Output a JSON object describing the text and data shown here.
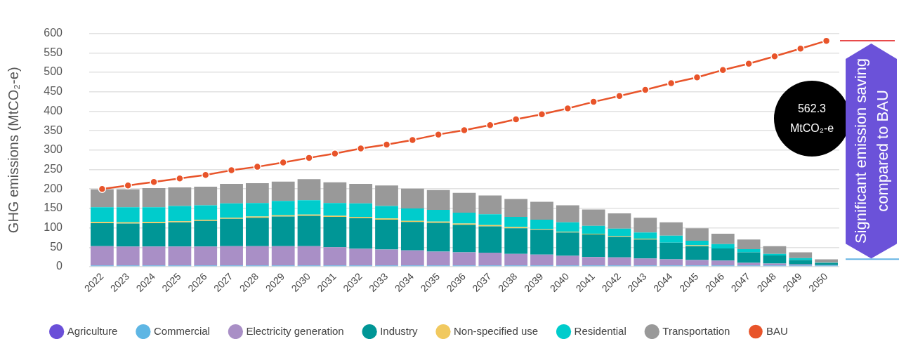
{
  "chart_data": {
    "type": "bar",
    "stacked": true,
    "ylabel": "GHG emissions (MtCO₂-e)",
    "categories": [
      "2022",
      "2023",
      "2024",
      "2025",
      "2026",
      "2027",
      "2028",
      "2029",
      "2030",
      "2031",
      "2032",
      "2033",
      "2034",
      "2035",
      "2036",
      "2037",
      "2038",
      "2039",
      "2040",
      "2041",
      "2042",
      "2043",
      "2044",
      "2045",
      "2046",
      "2047",
      "2048",
      "2049",
      "2050"
    ],
    "series": [
      {
        "name": "Agriculture",
        "color": "#6a4fd8",
        "values": [
          0,
          0,
          0,
          0,
          0,
          0,
          0,
          0,
          0,
          0,
          0,
          0,
          0,
          0,
          0,
          0,
          0,
          0,
          0,
          0,
          0,
          0,
          0,
          0,
          0,
          0,
          0,
          0,
          0
        ]
      },
      {
        "name": "Commercial",
        "color": "#5eb6e4",
        "values": [
          3,
          3,
          3,
          3,
          3,
          3,
          3,
          3,
          3,
          3,
          3,
          3,
          3,
          3,
          3,
          3,
          3,
          3,
          3,
          3,
          3,
          3,
          3,
          3,
          3,
          3,
          3,
          3,
          3
        ]
      },
      {
        "name": "Electricity generation",
        "color": "#a98fc6",
        "values": [
          50,
          49,
          49,
          49,
          49,
          50,
          50,
          50,
          50,
          47,
          43,
          41,
          39,
          36,
          34,
          33,
          30,
          28,
          25,
          22,
          21,
          18,
          16,
          14,
          13,
          7,
          5,
          3,
          1
        ]
      },
      {
        "name": "Industry",
        "color": "#009696",
        "values": [
          59,
          59,
          60,
          62,
          66,
          70,
          73,
          76,
          78,
          78,
          79,
          77,
          73,
          74,
          71,
          68,
          66,
          64,
          60,
          58,
          53,
          49,
          43,
          36,
          31,
          27,
          21,
          11,
          5
        ]
      },
      {
        "name": "Non-specified use",
        "color": "#f1c95f",
        "values": [
          3,
          3,
          3,
          3,
          3,
          3,
          3,
          3,
          3,
          3,
          3,
          3,
          3,
          3,
          3,
          3,
          3,
          2,
          2,
          2,
          2,
          2,
          0,
          2,
          0,
          0,
          0,
          0,
          0
        ]
      },
      {
        "name": "Residential",
        "color": "#00cccc",
        "values": [
          38,
          39,
          38,
          39,
          37,
          37,
          35,
          37,
          37,
          33,
          35,
          32,
          32,
          30,
          28,
          28,
          26,
          24,
          24,
          20,
          19,
          16,
          18,
          12,
          11,
          8,
          4,
          5,
          1
        ]
      },
      {
        "name": "Transportation",
        "color": "#999999",
        "values": [
          46,
          46,
          49,
          48,
          48,
          50,
          51,
          50,
          54,
          53,
          50,
          53,
          51,
          51,
          51,
          48,
          46,
          46,
          44,
          42,
          39,
          38,
          34,
          32,
          27,
          25,
          20,
          15,
          9
        ]
      },
      {
        "name": "BAU",
        "type": "line",
        "color": "#e8542a",
        "values": [
          200,
          209,
          218,
          227,
          236,
          248,
          257,
          268,
          280,
          291,
          304,
          314,
          326,
          340,
          351,
          364,
          379,
          392,
          407,
          424,
          439,
          455,
          472,
          487,
          506,
          522,
          541,
          561,
          581
        ]
      }
    ],
    "ylim": [
      0,
      600
    ],
    "yticks": [
      0,
      50,
      100,
      150,
      200,
      250,
      300,
      350,
      400,
      450,
      500,
      550,
      600
    ],
    "grid": "y",
    "legend": "bottom",
    "marker": "circle",
    "line_style": "solid",
    "annotations": [
      "562.3 MtCO₂-e",
      "Significant emission saving compared to BAU"
    ]
  }
}
